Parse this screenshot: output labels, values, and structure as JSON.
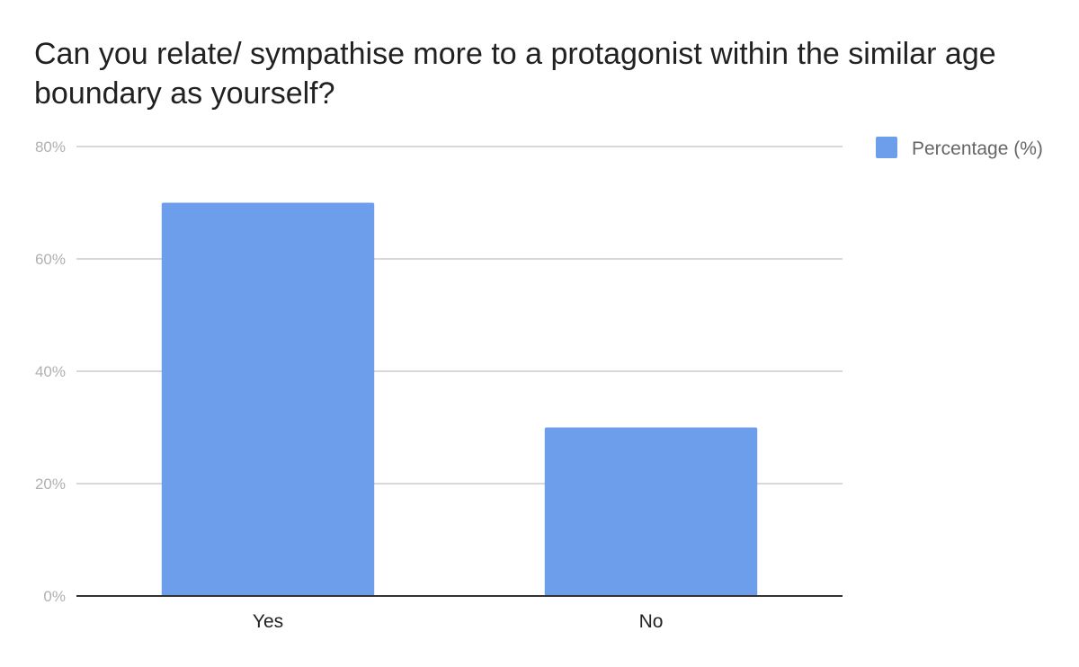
{
  "chart_data": {
    "type": "bar",
    "title": "Can you relate/ sympathise more to a protagonist within the similar age boundary as yourself?",
    "categories": [
      "Yes",
      "No"
    ],
    "series": [
      {
        "name": "Percentage (%)",
        "values": [
          70,
          30
        ],
        "color": "#6d9eeb"
      }
    ],
    "ylim": [
      0,
      80
    ],
    "yticks": [
      0,
      20,
      40,
      60,
      80
    ],
    "ytick_labels": [
      "0%",
      "20%",
      "40%",
      "60%",
      "80%"
    ],
    "xlabel": "",
    "ylabel": "",
    "grid": true,
    "legend": "top-right"
  }
}
